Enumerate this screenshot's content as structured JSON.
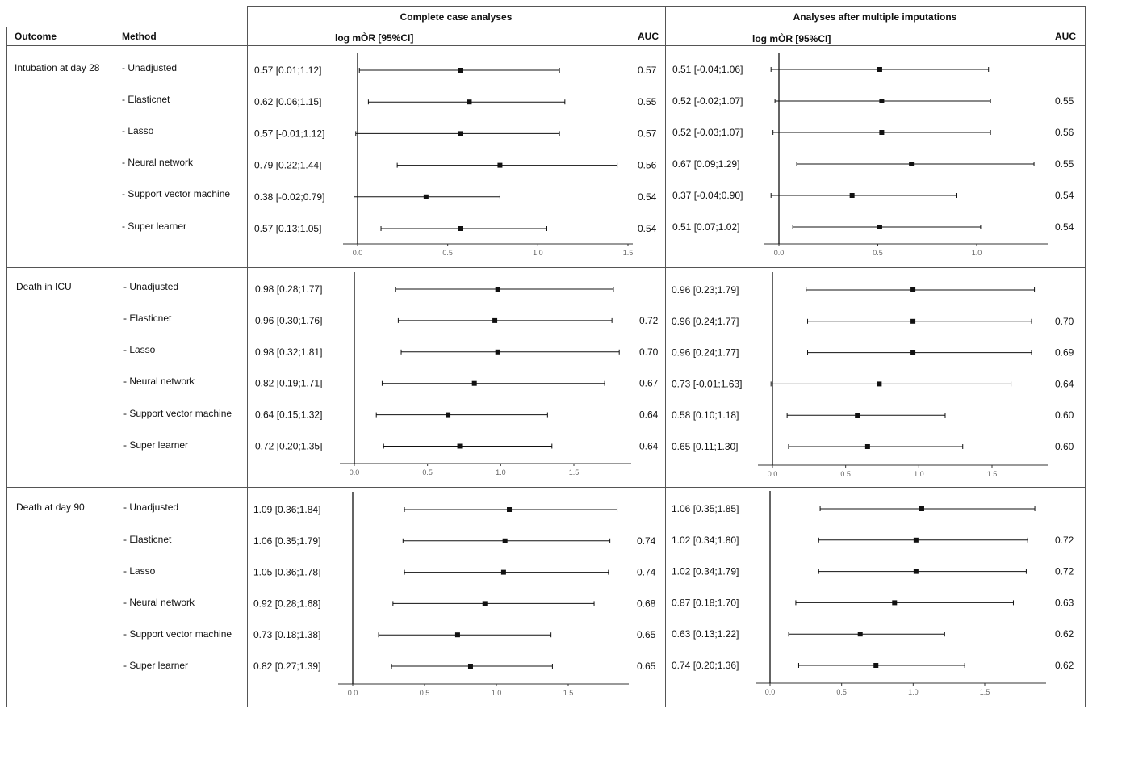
{
  "header": {
    "outcome": "Outcome",
    "method": "Method",
    "complete_case": "Complete case analyses",
    "multiple_imputation": "Analyses after multiple imputations",
    "estimate_label": "log mÒR [95%CI]",
    "auc_label": "AUC"
  },
  "methods": [
    "- Unadjusted",
    "- Elasticnet",
    "- Lasso",
    "- Neural network",
    "- Support vector machine",
    "- Super learner"
  ],
  "chart_data": [
    {
      "type": "forest",
      "outcome": "Intubation at day 28",
      "analysis": "Complete case analyses",
      "xlim": [
        0,
        1.5
      ],
      "ticks": [
        "0.0",
        "0.5",
        "1.0",
        "1.5"
      ],
      "rows": [
        {
          "method": "- Unadjusted",
          "estimate": 0.57,
          "lower": 0.01,
          "upper": 1.12,
          "label": "0.57 [0.01;1.12]",
          "auc": "0.57"
        },
        {
          "method": "- Elasticnet",
          "estimate": 0.62,
          "lower": 0.06,
          "upper": 1.15,
          "label": "0.62 [0.06;1.15]",
          "auc": "0.55"
        },
        {
          "method": "- Lasso",
          "estimate": 0.57,
          "lower": -0.01,
          "upper": 1.12,
          "label": "0.57 [-0.01;1.12]",
          "auc": "0.57"
        },
        {
          "method": "- Neural network",
          "estimate": 0.79,
          "lower": 0.22,
          "upper": 1.44,
          "label": "0.79 [0.22;1.44]",
          "auc": "0.56"
        },
        {
          "method": "- Support vector machine",
          "estimate": 0.38,
          "lower": -0.02,
          "upper": 0.79,
          "label": "0.38 [-0.02;0.79]",
          "auc": "0.54"
        },
        {
          "method": "- Super learner",
          "estimate": 0.57,
          "lower": 0.13,
          "upper": 1.05,
          "label": "0.57 [0.13;1.05]",
          "auc": "0.54"
        }
      ]
    },
    {
      "type": "forest",
      "outcome": "Intubation at day 28",
      "analysis": "Analyses after multiple imputations",
      "xlim": [
        0,
        1.3
      ],
      "ticks": [
        "0.0",
        "0.5",
        "1.0"
      ],
      "rows": [
        {
          "method": "- Unadjusted",
          "estimate": 0.51,
          "lower": -0.04,
          "upper": 1.06,
          "label": "0.51 [-0.04;1.06]",
          "auc": ""
        },
        {
          "method": "- Elasticnet",
          "estimate": 0.52,
          "lower": -0.02,
          "upper": 1.07,
          "label": "0.52 [-0.02;1.07]",
          "auc": "0.55"
        },
        {
          "method": "- Lasso",
          "estimate": 0.52,
          "lower": -0.03,
          "upper": 1.07,
          "label": "0.52 [-0.03;1.07]",
          "auc": "0.56"
        },
        {
          "method": "- Neural network",
          "estimate": 0.67,
          "lower": 0.09,
          "upper": 1.29,
          "label": "0.67 [0.09;1.29]",
          "auc": "0.55"
        },
        {
          "method": "- Support vector machine",
          "estimate": 0.37,
          "lower": -0.04,
          "upper": 0.9,
          "label": "0.37 [-0.04;0.90]",
          "auc": "0.54"
        },
        {
          "method": "- Super learner",
          "estimate": 0.51,
          "lower": 0.07,
          "upper": 1.02,
          "label": "0.51 [0.07;1.02]",
          "auc": "0.54"
        }
      ]
    },
    {
      "type": "forest",
      "outcome": "Death in ICU",
      "analysis": "Complete case analyses",
      "xlim": [
        0,
        1.9
      ],
      "ticks": [
        "0.0",
        "0.5",
        "1.0",
        "1.5"
      ],
      "rows": [
        {
          "method": "- Unadjusted",
          "estimate": 0.98,
          "lower": 0.28,
          "upper": 1.77,
          "label": "0.98 [0.28;1.77]",
          "auc": ""
        },
        {
          "method": "- Elasticnet",
          "estimate": 0.96,
          "lower": 0.3,
          "upper": 1.76,
          "label": "0.96 [0.30;1.76]",
          "auc": "0.72"
        },
        {
          "method": "- Lasso",
          "estimate": 0.98,
          "lower": 0.32,
          "upper": 1.81,
          "label": "0.98 [0.32;1.81]",
          "auc": "0.70"
        },
        {
          "method": "- Neural network",
          "estimate": 0.82,
          "lower": 0.19,
          "upper": 1.71,
          "label": "0.82 [0.19;1.71]",
          "auc": "0.67"
        },
        {
          "method": "- Support vector machine",
          "estimate": 0.64,
          "lower": 0.15,
          "upper": 1.32,
          "label": "0.64 [0.15;1.32]",
          "auc": "0.64"
        },
        {
          "method": "- Super learner",
          "estimate": 0.72,
          "lower": 0.2,
          "upper": 1.35,
          "label": "0.72 [0.20;1.35]",
          "auc": "0.64"
        }
      ]
    },
    {
      "type": "forest",
      "outcome": "Death in ICU",
      "analysis": "Analyses after multiple imputations",
      "xlim": [
        0,
        1.9
      ],
      "ticks": [
        "0.0",
        "0.5",
        "1.0",
        "1.5"
      ],
      "rows": [
        {
          "method": "- Unadjusted",
          "estimate": 0.96,
          "lower": 0.23,
          "upper": 1.79,
          "label": "0.96 [0.23;1.79]",
          "auc": ""
        },
        {
          "method": "- Elasticnet",
          "estimate": 0.96,
          "lower": 0.24,
          "upper": 1.77,
          "label": "0.96 [0.24;1.77]",
          "auc": "0.70"
        },
        {
          "method": "- Lasso",
          "estimate": 0.96,
          "lower": 0.24,
          "upper": 1.77,
          "label": "0.96 [0.24;1.77]",
          "auc": "0.69"
        },
        {
          "method": "- Neural network",
          "estimate": 0.73,
          "lower": -0.01,
          "upper": 1.63,
          "label": "0.73 [-0.01;1.63]",
          "auc": "0.64"
        },
        {
          "method": "- Support vector machine",
          "estimate": 0.58,
          "lower": 0.1,
          "upper": 1.18,
          "label": "0.58 [0.10;1.18]",
          "auc": "0.60"
        },
        {
          "method": "- Super learner",
          "estimate": 0.65,
          "lower": 0.11,
          "upper": 1.3,
          "label": "0.65 [0.11;1.30]",
          "auc": "0.60"
        }
      ]
    },
    {
      "type": "forest",
      "outcome": "Death at day 90",
      "analysis": "Complete case analyses",
      "xlim": [
        0,
        1.9
      ],
      "ticks": [
        "0.0",
        "0.5",
        "1.0",
        "1.5"
      ],
      "rows": [
        {
          "method": "- Unadjusted",
          "estimate": 1.09,
          "lower": 0.36,
          "upper": 1.84,
          "label": "1.09 [0.36;1.84]",
          "auc": ""
        },
        {
          "method": "- Elasticnet",
          "estimate": 1.06,
          "lower": 0.35,
          "upper": 1.79,
          "label": "1.06 [0.35;1.79]",
          "auc": "0.74"
        },
        {
          "method": "- Lasso",
          "estimate": 1.05,
          "lower": 0.36,
          "upper": 1.78,
          "label": "1.05 [0.36;1.78]",
          "auc": "0.74"
        },
        {
          "method": "- Neural network",
          "estimate": 0.92,
          "lower": 0.28,
          "upper": 1.68,
          "label": "0.92 [0.28;1.68]",
          "auc": "0.68"
        },
        {
          "method": "- Support vector machine",
          "estimate": 0.73,
          "lower": 0.18,
          "upper": 1.38,
          "label": "0.73 [0.18;1.38]",
          "auc": "0.65"
        },
        {
          "method": "- Super learner",
          "estimate": 0.82,
          "lower": 0.27,
          "upper": 1.39,
          "label": "0.82 [0.27;1.39]",
          "auc": "0.65"
        }
      ]
    },
    {
      "type": "forest",
      "outcome": "Death at day 90",
      "analysis": "Analyses after multiple imputations",
      "xlim": [
        0,
        1.95
      ],
      "ticks": [
        "0.0",
        "0.5",
        "1.0",
        "1.5"
      ],
      "rows": [
        {
          "method": "- Unadjusted",
          "estimate": 1.06,
          "lower": 0.35,
          "upper": 1.85,
          "label": "1.06 [0.35;1.85]",
          "auc": ""
        },
        {
          "method": "- Elasticnet",
          "estimate": 1.02,
          "lower": 0.34,
          "upper": 1.8,
          "label": "1.02 [0.34;1.80]",
          "auc": "0.72"
        },
        {
          "method": "- Lasso",
          "estimate": 1.02,
          "lower": 0.34,
          "upper": 1.79,
          "label": "1.02 [0.34;1.79]",
          "auc": "0.72"
        },
        {
          "method": "- Neural network",
          "estimate": 0.87,
          "lower": 0.18,
          "upper": 1.7,
          "label": "0.87 [0.18;1.70]",
          "auc": "0.63"
        },
        {
          "method": "- Support vector machine",
          "estimate": 0.63,
          "lower": 0.13,
          "upper": 1.22,
          "label": "0.63 [0.13;1.22]",
          "auc": "0.62"
        },
        {
          "method": "- Super learner",
          "estimate": 0.74,
          "lower": 0.2,
          "upper": 1.36,
          "label": "0.74 [0.20;1.36]",
          "auc": "0.62"
        }
      ]
    }
  ]
}
